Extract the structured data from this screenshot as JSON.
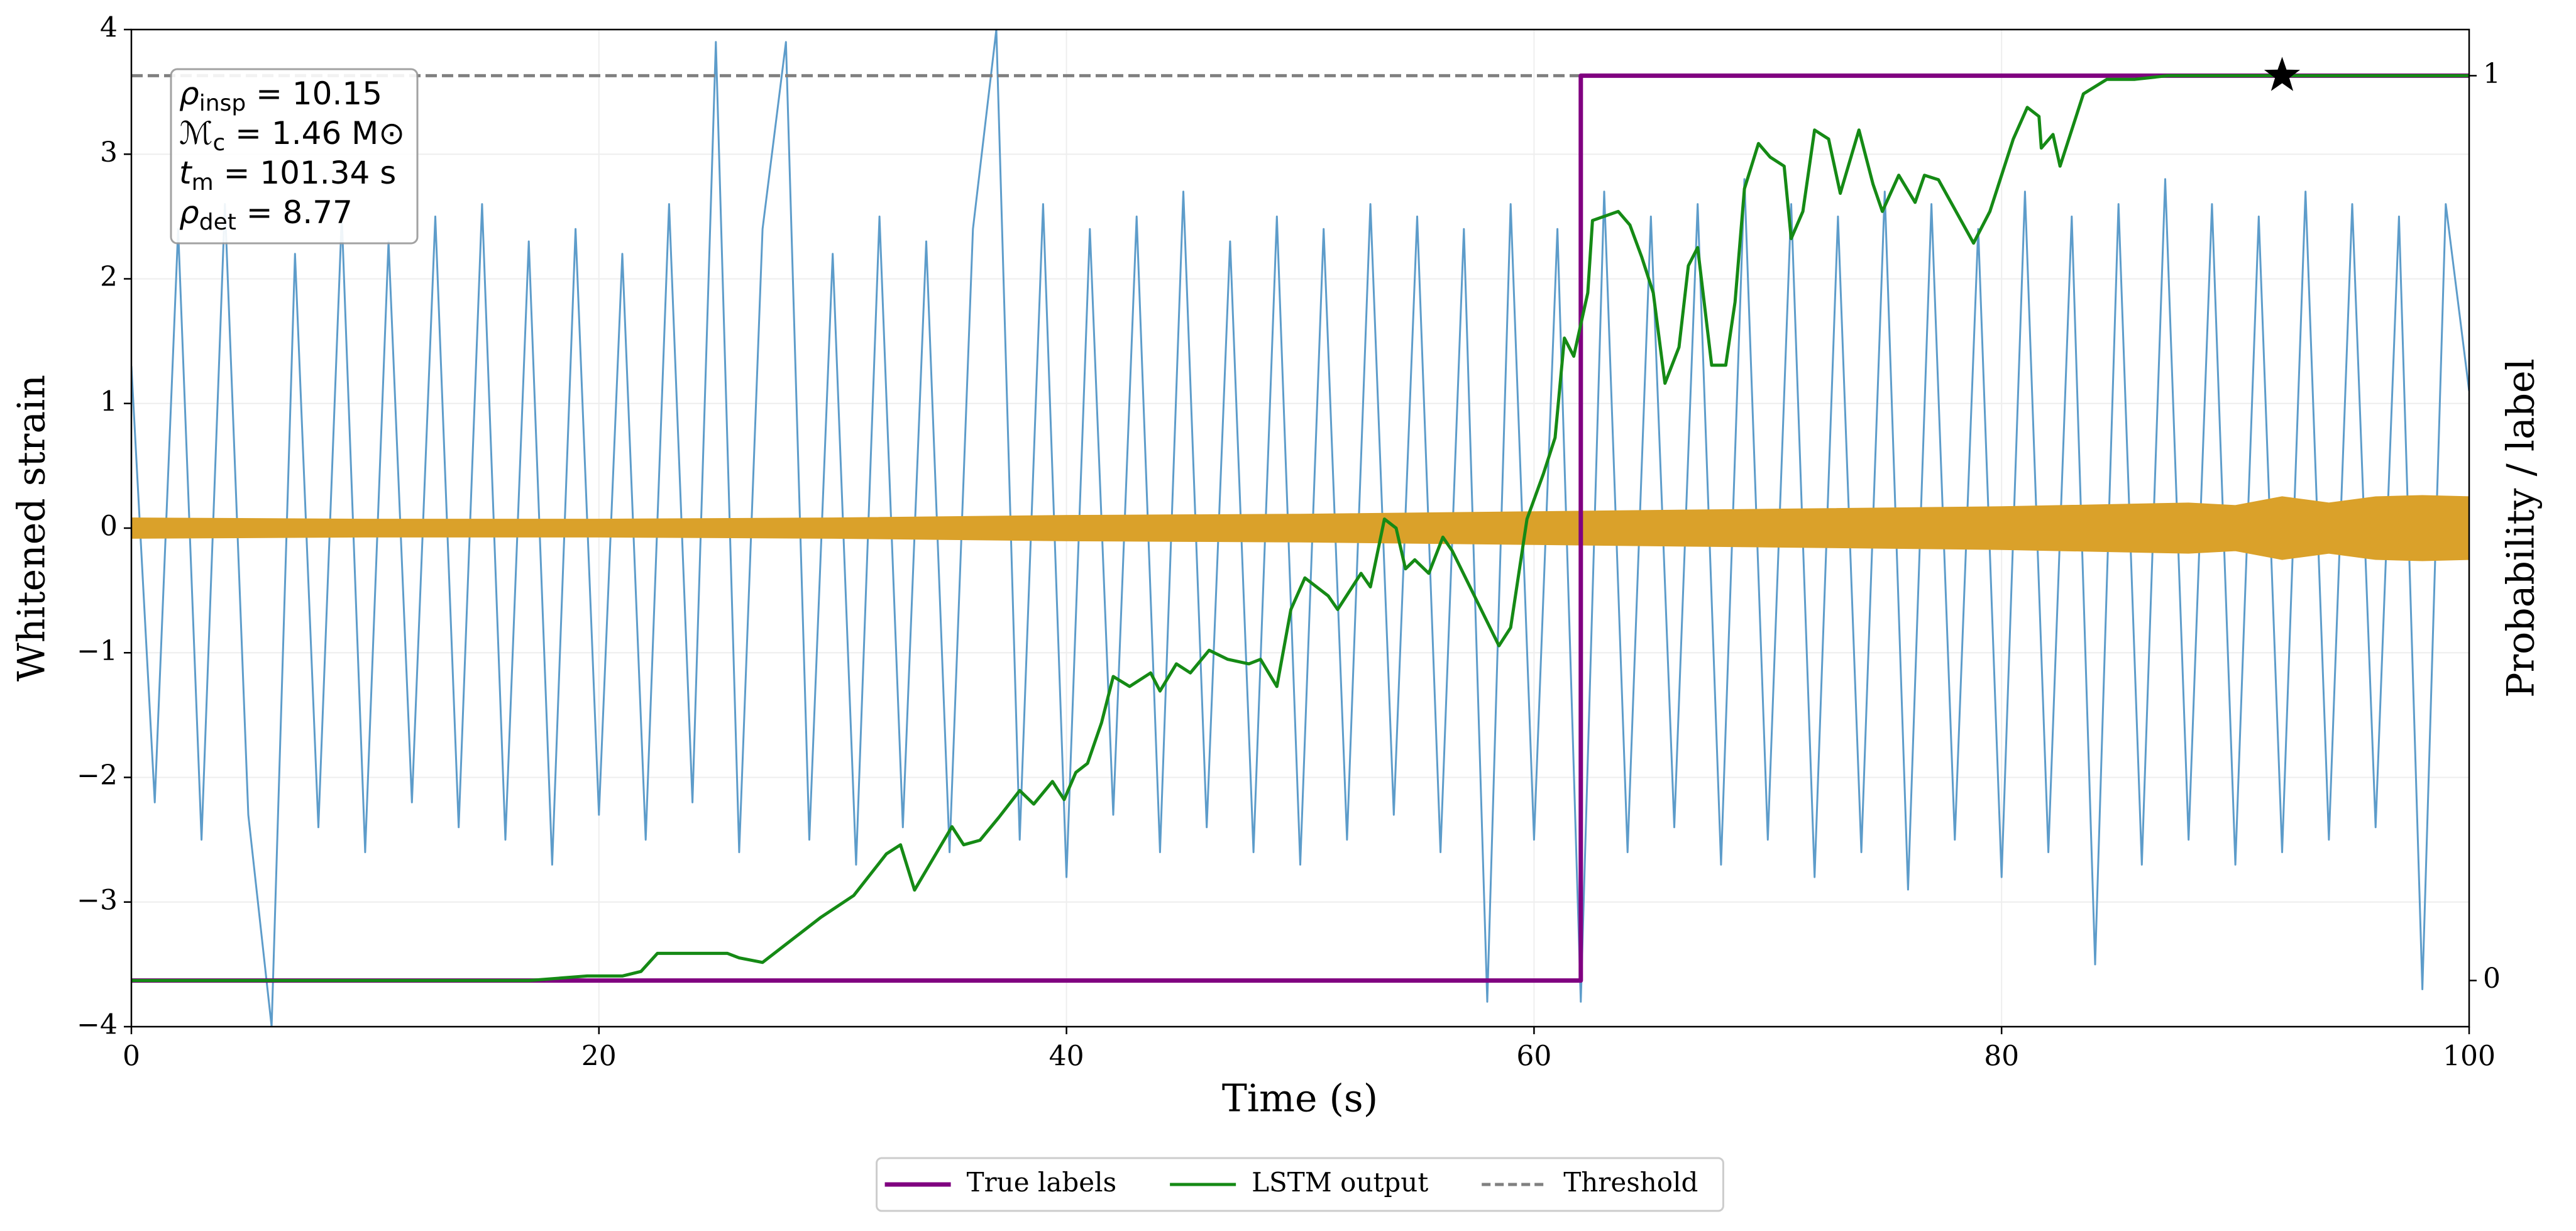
{
  "chart_data": {
    "type": "line",
    "xlabel": "Time (s)",
    "ylabel": "Whitened strain",
    "y2label": "Probability / label",
    "xlim": [
      0,
      100
    ],
    "xticks": [
      0,
      20,
      40,
      60,
      80,
      100
    ],
    "ylim": [
      -4,
      4
    ],
    "yticks": [
      {
        "value": -4,
        "label": "−4"
      },
      {
        "value": -3,
        "label": "−3"
      },
      {
        "value": -2,
        "label": "−2"
      },
      {
        "value": -1,
        "label": "−1"
      },
      0,
      1,
      2,
      3,
      4
    ],
    "y2lim": [
      -0.051,
      1.051
    ],
    "y2ticks": [
      0,
      1
    ],
    "grid": true,
    "legend": "bottom",
    "series": [
      {
        "color": "#5497c7",
        "axis": "y",
        "x": [
          0,
          1,
          2,
          3,
          4,
          5,
          6,
          7,
          8,
          9,
          10,
          11,
          12,
          13,
          14,
          15,
          16,
          17,
          18,
          19,
          20,
          21,
          22,
          23,
          24,
          25,
          26,
          27,
          28,
          29,
          30,
          31,
          32,
          33,
          34,
          35,
          36,
          37,
          38,
          39,
          40,
          41,
          42,
          43,
          44,
          45,
          46,
          47,
          48,
          49,
          50,
          51,
          52,
          53,
          54,
          55,
          56,
          57,
          58,
          59,
          60,
          61,
          62,
          63,
          64,
          65,
          66,
          67,
          68,
          69,
          70,
          71,
          72,
          73,
          74,
          75,
          76,
          77,
          78,
          79,
          80,
          81,
          82,
          83,
          84,
          85,
          86,
          87,
          88,
          89,
          90,
          91,
          92,
          93,
          94,
          95,
          96,
          97,
          98,
          99,
          100
        ],
        "values": [
          1.3,
          -2.2,
          2.4,
          -2.5,
          2.6,
          -2.3,
          -4.0,
          2.2,
          -2.4,
          2.5,
          -2.6,
          2.3,
          -2.2,
          2.5,
          -2.4,
          2.6,
          -2.5,
          2.3,
          -2.7,
          2.4,
          -2.3,
          2.2,
          -2.5,
          2.6,
          -2.2,
          3.9,
          -2.6,
          2.4,
          3.9,
          -2.5,
          2.2,
          -2.7,
          2.5,
          -2.4,
          2.3,
          -2.6,
          2.4,
          4.0,
          -2.5,
          2.6,
          -2.8,
          2.4,
          -2.3,
          2.5,
          -2.6,
          2.7,
          -2.4,
          2.3,
          -2.6,
          2.5,
          -2.7,
          2.4,
          -2.5,
          2.6,
          -2.3,
          2.5,
          -2.6,
          2.4,
          -3.8,
          2.6,
          -2.5,
          2.4,
          -3.8,
          2.7,
          -2.6,
          2.5,
          -2.4,
          2.6,
          -2.7,
          2.8,
          -2.5,
          2.6,
          -2.8,
          2.5,
          -2.6,
          2.7,
          -2.9,
          2.6,
          -2.5,
          2.4,
          -2.8,
          2.7,
          -2.6,
          2.5,
          -3.5,
          2.6,
          -2.7,
          2.8,
          -2.5,
          2.6,
          -2.7,
          2.5,
          -2.6,
          2.7,
          -2.5,
          2.6,
          -2.4,
          2.5,
          -3.7,
          2.6,
          1.1
        ]
      },
      {
        "color": "#daa12a",
        "axis": "y",
        "style": "band",
        "x": [
          0,
          10,
          20,
          30,
          40,
          50,
          60,
          70,
          80,
          88,
          90,
          92,
          94,
          96,
          98,
          100
        ],
        "values": [
          0.08,
          0.07,
          0.07,
          0.08,
          0.1,
          0.11,
          0.13,
          0.15,
          0.17,
          0.2,
          0.18,
          0.25,
          0.2,
          0.25,
          0.26,
          0.25
        ],
        "lower": [
          -0.08,
          -0.07,
          -0.07,
          -0.08,
          -0.1,
          -0.11,
          -0.13,
          -0.15,
          -0.17,
          -0.2,
          -0.18,
          -0.25,
          -0.2,
          -0.25,
          -0.26,
          -0.25
        ]
      },
      {
        "name": "True labels",
        "color": "#800080",
        "axis": "y2",
        "x": [
          0,
          62,
          62,
          100
        ],
        "values": [
          0,
          0,
          1,
          1
        ]
      },
      {
        "name": "LSTM output",
        "color": "#158a15",
        "axis": "y2",
        "x": [
          0,
          17,
          19.5,
          21,
          21.8,
          22.5,
          24,
          25.5,
          26,
          27,
          28,
          29.5,
          30.9,
          32.3,
          32.9,
          33.5,
          35.1,
          35.6,
          36.3,
          37.1,
          38,
          38.6,
          39.4,
          39.9,
          40.4,
          40.9,
          41.5,
          42,
          42.7,
          43.6,
          44,
          44.7,
          45.3,
          46.1,
          46.9,
          47.8,
          48.3,
          49,
          49.6,
          50.2,
          51.2,
          51.6,
          52.6,
          53,
          53.6,
          54.1,
          54.5,
          54.9,
          55.5,
          56.1,
          56.5,
          58.5,
          59,
          59.7,
          60.4,
          60.9,
          61.3,
          61.7,
          62.3,
          62.5,
          63.6,
          64.1,
          64.6,
          65.1,
          65.6,
          66.2,
          66.6,
          67,
          67.6,
          68.2,
          68.6,
          69,
          69.6,
          70.1,
          70.7,
          71,
          71.5,
          72,
          72.6,
          73.1,
          73.9,
          74.5,
          74.9,
          75.6,
          76.3,
          76.7,
          77.3,
          78.8,
          79.5,
          80,
          80.5,
          81.1,
          81.6,
          81.7,
          82.2,
          82.5,
          83.5,
          84.5,
          85.7,
          87.1,
          100
        ],
        "values": [
          0,
          0,
          0.005,
          0.005,
          0.01,
          0.03,
          0.03,
          0.03,
          0.025,
          0.02,
          0.04,
          0.07,
          0.094,
          0.14,
          0.15,
          0.1,
          0.17,
          0.15,
          0.155,
          0.18,
          0.21,
          0.195,
          0.22,
          0.2,
          0.23,
          0.24,
          0.285,
          0.336,
          0.325,
          0.34,
          0.32,
          0.35,
          0.34,
          0.365,
          0.355,
          0.35,
          0.355,
          0.325,
          0.41,
          0.445,
          0.425,
          0.41,
          0.45,
          0.435,
          0.51,
          0.5,
          0.455,
          0.465,
          0.45,
          0.49,
          0.475,
          0.37,
          0.39,
          0.51,
          0.56,
          0.6,
          0.71,
          0.69,
          0.76,
          0.84,
          0.85,
          0.835,
          0.8,
          0.76,
          0.66,
          0.7,
          0.79,
          0.81,
          0.68,
          0.68,
          0.75,
          0.875,
          0.925,
          0.91,
          0.9,
          0.82,
          0.85,
          0.94,
          0.93,
          0.87,
          0.94,
          0.88,
          0.85,
          0.89,
          0.86,
          0.89,
          0.885,
          0.815,
          0.85,
          0.89,
          0.93,
          0.965,
          0.955,
          0.92,
          0.935,
          0.9,
          0.98,
          0.996,
          0.996,
          1,
          1
        ]
      }
    ],
    "threshold": {
      "name": "Threshold",
      "value": 1,
      "axis": "y2",
      "color": "#808080"
    },
    "marker": {
      "x": 92,
      "value": 1,
      "axis": "y2",
      "color": "#000000"
    },
    "annotation": [
      {
        "symbol": "ρ",
        "sub": "insp",
        "rest": " = 10.15"
      },
      {
        "symbol": "ℳ",
        "sub": "c",
        "rest": " = 1.46 M⊙"
      },
      {
        "symbol": "t",
        "sub": "m",
        "rest": " = 101.34 s"
      },
      {
        "symbol": "ρ",
        "sub": "det",
        "rest": " = 8.77"
      }
    ]
  }
}
